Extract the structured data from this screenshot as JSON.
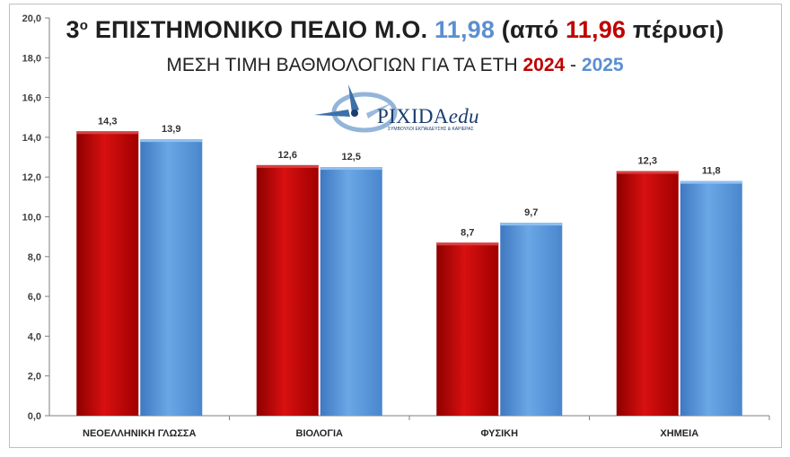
{
  "header": {
    "title_prefix": "3",
    "title_sup": "ο",
    "title_main": " ΕΠΙΣΤΗΜΟΝΙΚΟ ΠΕΔΙΟ Μ.Ο. ",
    "title_value": "11,98",
    "title_paren_open": " (από ",
    "title_prev_value": "11,96",
    "title_paren_close": " πέρυσι)",
    "subtitle_main": "ΜΕΣΗ ΤΙΜΗ ΒΑΘΜΟΛΟΓΙΩΝ ΓΙΑ ΤΑ ΕΤΗ ",
    "subtitle_year1": "2024",
    "subtitle_dash": " - ",
    "subtitle_year2": "2025"
  },
  "logo": {
    "name": "PIXIDA",
    "suffix": "edu",
    "tagline": "ΣΥΜΒΟΥΛΟΙ ΕΚΠΑΙΔΕΥΣΗΣ & ΚΑΡΙΕΡΑΣ"
  },
  "colors": {
    "series_2024": "#c00000",
    "series_2025": "#5b9bd5",
    "accent_blue": "#5b8fd0",
    "accent_red": "#c00000"
  },
  "chart_data": {
    "type": "bar",
    "categories": [
      "ΝΕΟΕΛΛΗΝΙΚΗ ΓΛΩΣΣΑ",
      "ΒΙΟΛΟΓΙΑ",
      "ΦΥΣΙΚΗ",
      "ΧΗΜΕΙΑ"
    ],
    "series": [
      {
        "name": "2024",
        "values": [
          14.3,
          12.6,
          8.7,
          12.3
        ],
        "labels": [
          "14,3",
          "12,6",
          "8,7",
          "12,3"
        ]
      },
      {
        "name": "2025",
        "values": [
          13.9,
          12.5,
          9.7,
          11.8
        ],
        "labels": [
          "13,9",
          "12,5",
          "9,7",
          "11,8"
        ]
      }
    ],
    "ylim": [
      0,
      20
    ],
    "yticks": [
      "0,0",
      "2,0",
      "4,0",
      "6,0",
      "8,0",
      "10,0",
      "12,0",
      "14,0",
      "16,0",
      "18,0",
      "20,0"
    ],
    "grid": false,
    "legend": "none"
  }
}
